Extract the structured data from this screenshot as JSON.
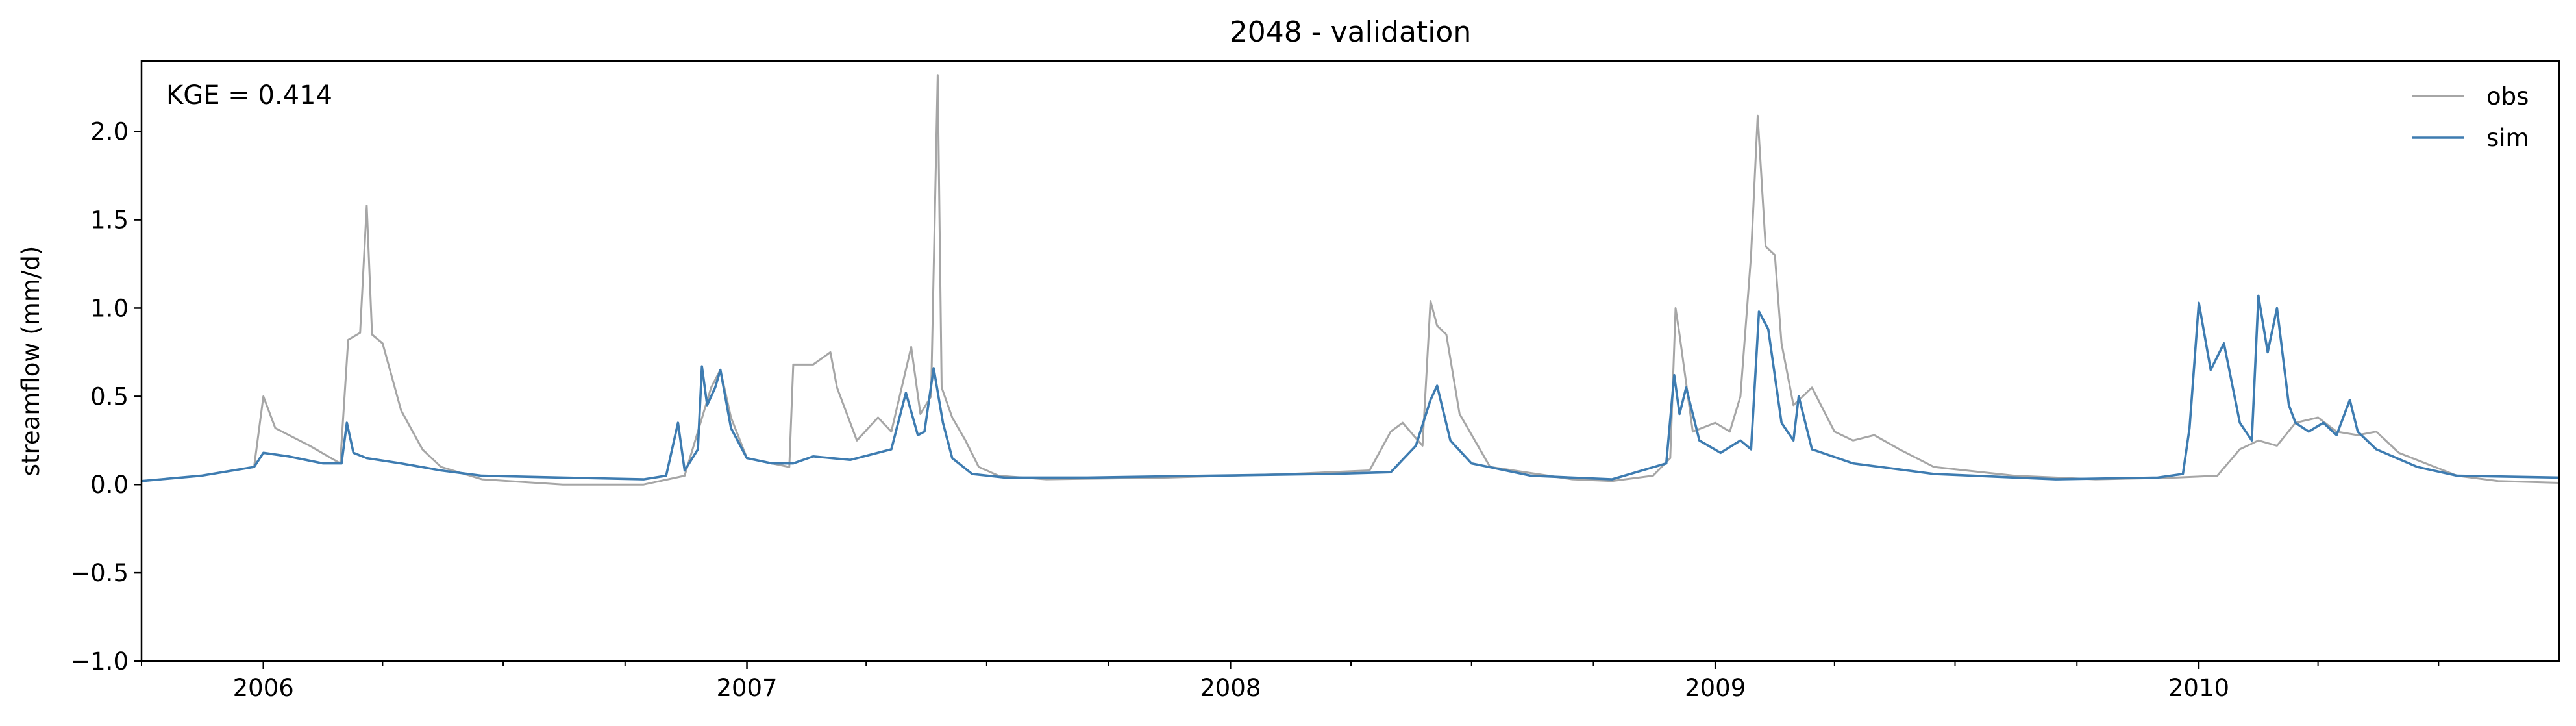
{
  "chart_data": {
    "type": "line",
    "title": "2048 - validation",
    "xlabel": "",
    "ylabel": "streamflow (mm/d)",
    "annotation": "KGE = 0.414",
    "x_range": [
      "2005-10-01",
      "2010-09-30"
    ],
    "ylim": [
      -1.0,
      2.4
    ],
    "yticks": [
      -1.0,
      -0.5,
      0.0,
      0.5,
      1.0,
      1.5,
      2.0
    ],
    "ytick_labels": [
      "−1.0",
      "−0.5",
      "0.0",
      "0.5",
      "1.0",
      "1.5",
      "2.0"
    ],
    "x_major_ticks": [
      "2006-01-01",
      "2007-01-01",
      "2008-01-01",
      "2009-01-01",
      "2010-01-01"
    ],
    "x_major_labels": [
      "2006",
      "2007",
      "2008",
      "2009",
      "2010"
    ],
    "x_minor_tick_months": [
      1,
      4,
      7,
      10
    ],
    "grid": false,
    "legend_position": "top-right",
    "series": [
      {
        "name": "obs",
        "color": "#a6a6a6",
        "x": [
          "2005-10-01",
          "2005-11-15",
          "2005-12-25",
          "2006-01-01",
          "2006-01-10",
          "2006-02-05",
          "2006-02-28",
          "2006-03-06",
          "2006-03-15",
          "2006-03-20",
          "2006-03-24",
          "2006-04-01",
          "2006-04-15",
          "2006-05-01",
          "2006-05-15",
          "2006-06-15",
          "2006-08-15",
          "2006-10-15",
          "2006-11-15",
          "2006-11-25",
          "2006-12-05",
          "2006-12-12",
          "2006-12-20",
          "2007-01-01",
          "2007-01-20",
          "2007-02-02",
          "2007-02-05",
          "2007-02-20",
          "2007-03-05",
          "2007-03-10",
          "2007-03-25",
          "2007-04-10",
          "2007-04-20",
          "2007-05-05",
          "2007-05-12",
          "2007-05-20",
          "2007-05-25",
          "2007-05-28",
          "2007-06-05",
          "2007-06-15",
          "2007-06-25",
          "2007-07-10",
          "2007-08-15",
          "2007-11-15",
          "2008-02-15",
          "2008-04-15",
          "2008-05-01",
          "2008-05-10",
          "2008-05-25",
          "2008-05-31",
          "2008-06-05",
          "2008-06-12",
          "2008-06-22",
          "2008-07-15",
          "2008-09-15",
          "2008-10-15",
          "2008-11-15",
          "2008-11-28",
          "2008-12-02",
          "2008-12-05",
          "2008-12-15",
          "2009-01-01",
          "2009-01-12",
          "2009-01-20",
          "2009-01-28",
          "2009-02-02",
          "2009-02-08",
          "2009-02-15",
          "2009-02-20",
          "2009-03-01",
          "2009-03-15",
          "2009-04-01",
          "2009-04-15",
          "2009-05-01",
          "2009-05-20",
          "2009-06-15",
          "2009-08-15",
          "2009-10-15",
          "2009-12-15",
          "2010-01-15",
          "2010-02-01",
          "2010-02-15",
          "2010-03-01",
          "2010-03-15",
          "2010-04-01",
          "2010-04-15",
          "2010-05-01",
          "2010-05-15",
          "2010-06-01",
          "2010-07-15",
          "2010-08-15",
          "2010-09-30"
        ],
        "values": [
          0.02,
          0.05,
          0.1,
          0.5,
          0.32,
          0.22,
          0.12,
          0.82,
          0.86,
          1.58,
          0.85,
          0.8,
          0.42,
          0.2,
          0.1,
          0.03,
          0.0,
          0.0,
          0.05,
          0.3,
          0.55,
          0.65,
          0.38,
          0.15,
          0.12,
          0.1,
          0.68,
          0.68,
          0.75,
          0.55,
          0.25,
          0.38,
          0.3,
          0.78,
          0.4,
          0.5,
          2.32,
          0.55,
          0.38,
          0.25,
          0.1,
          0.05,
          0.03,
          0.04,
          0.06,
          0.08,
          0.3,
          0.35,
          0.22,
          1.04,
          0.9,
          0.85,
          0.4,
          0.1,
          0.03,
          0.02,
          0.05,
          0.15,
          1.0,
          0.85,
          0.3,
          0.35,
          0.3,
          0.5,
          1.3,
          2.09,
          1.35,
          1.3,
          0.8,
          0.45,
          0.55,
          0.3,
          0.25,
          0.28,
          0.2,
          0.1,
          0.05,
          0.03,
          0.04,
          0.05,
          0.2,
          0.25,
          0.22,
          0.35,
          0.38,
          0.3,
          0.28,
          0.3,
          0.18,
          0.05,
          0.02,
          0.01
        ]
      },
      {
        "name": "sim",
        "color": "#3e7cb1",
        "x": [
          "2005-10-01",
          "2005-11-15",
          "2005-12-25",
          "2006-01-01",
          "2006-01-20",
          "2006-02-15",
          "2006-03-01",
          "2006-03-05",
          "2006-03-10",
          "2006-03-20",
          "2006-04-15",
          "2006-05-15",
          "2006-06-15",
          "2006-08-15",
          "2006-10-15",
          "2006-11-01",
          "2006-11-10",
          "2006-11-15",
          "2006-11-25",
          "2006-11-28",
          "2006-12-02",
          "2006-12-08",
          "2006-12-12",
          "2006-12-20",
          "2007-01-01",
          "2007-01-20",
          "2007-02-05",
          "2007-02-20",
          "2007-03-20",
          "2007-04-20",
          "2007-05-01",
          "2007-05-10",
          "2007-05-15",
          "2007-05-22",
          "2007-05-29",
          "2007-06-05",
          "2007-06-20",
          "2007-07-15",
          "2007-09-15",
          "2007-12-15",
          "2008-03-15",
          "2008-05-01",
          "2008-05-20",
          "2008-05-31",
          "2008-06-05",
          "2008-06-15",
          "2008-07-01",
          "2008-08-15",
          "2008-10-15",
          "2008-11-25",
          "2008-12-01",
          "2008-12-05",
          "2008-12-10",
          "2008-12-20",
          "2009-01-05",
          "2009-01-20",
          "2009-01-28",
          "2009-02-03",
          "2009-02-10",
          "2009-02-20",
          "2009-03-01",
          "2009-03-05",
          "2009-03-15",
          "2009-04-15",
          "2009-06-15",
          "2009-09-15",
          "2009-12-01",
          "2009-12-20",
          "2009-12-25",
          "2010-01-01",
          "2010-01-10",
          "2010-01-20",
          "2010-02-01",
          "2010-02-10",
          "2010-02-15",
          "2010-02-22",
          "2010-03-01",
          "2010-03-10",
          "2010-03-15",
          "2010-03-25",
          "2010-04-05",
          "2010-04-15",
          "2010-04-25",
          "2010-05-01",
          "2010-05-15",
          "2010-06-15",
          "2010-07-15",
          "2010-09-30"
        ],
        "values": [
          0.02,
          0.05,
          0.1,
          0.18,
          0.16,
          0.12,
          0.12,
          0.35,
          0.18,
          0.15,
          0.12,
          0.08,
          0.05,
          0.04,
          0.03,
          0.05,
          0.35,
          0.08,
          0.2,
          0.67,
          0.45,
          0.55,
          0.65,
          0.32,
          0.15,
          0.12,
          0.12,
          0.16,
          0.14,
          0.2,
          0.52,
          0.28,
          0.3,
          0.66,
          0.35,
          0.15,
          0.06,
          0.04,
          0.04,
          0.05,
          0.06,
          0.07,
          0.22,
          0.48,
          0.56,
          0.25,
          0.12,
          0.05,
          0.03,
          0.12,
          0.62,
          0.4,
          0.55,
          0.25,
          0.18,
          0.25,
          0.2,
          0.98,
          0.88,
          0.35,
          0.25,
          0.5,
          0.2,
          0.12,
          0.06,
          0.03,
          0.04,
          0.06,
          0.32,
          1.03,
          0.65,
          0.8,
          0.35,
          0.25,
          1.07,
          0.75,
          1.0,
          0.45,
          0.35,
          0.3,
          0.35,
          0.28,
          0.48,
          0.3,
          0.2,
          0.1,
          0.05,
          0.04
        ]
      }
    ]
  }
}
